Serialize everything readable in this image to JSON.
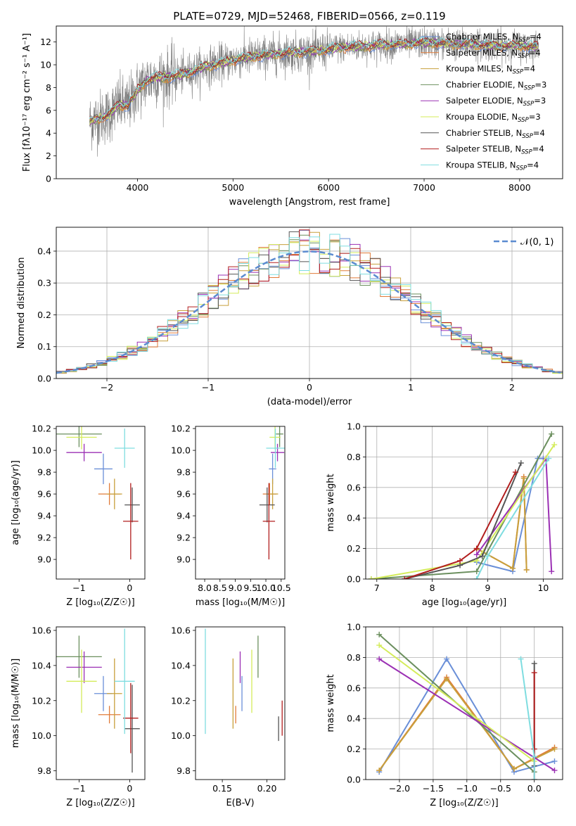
{
  "title": "PLATE=0729, MJD=52468, FIBERID=0566, z=0.119",
  "colors": {
    "Chabrier MILES": "#6a8fd8",
    "Salpeter MILES": "#e07b39",
    "Kroupa MILES": "#c8a03c",
    "Chabrier ELODIE": "#6b8f5e",
    "Salpeter ELODIE": "#9b30b4",
    "Kroupa ELODIE": "#d4ec5a",
    "Chabrier STELIB": "#555555",
    "Salpeter STELIB": "#b21e1e",
    "Kroupa STELIB": "#7fdde0",
    "spectrum": "#808080",
    "gauss": "#5b8bd0"
  },
  "chart_data": [
    {
      "type": "line",
      "panel": "spectrum",
      "xlabel": "wavelength [Angstrom, rest frame]",
      "ylabel": "Flux [fλ10⁻¹⁷ erg cm⁻² s⁻¹ A⁻¹]",
      "xlim": [
        3150,
        8450
      ],
      "ylim": [
        0,
        13.4
      ],
      "xticks": [
        4000,
        5000,
        6000,
        7000,
        8000
      ],
      "yticks": [
        0,
        2,
        4,
        6,
        8,
        10,
        12
      ],
      "legend_position": "upper-right",
      "legend": [
        "Chabrier MILES, N_SSP=4",
        "Salpeter MILES, N_SSP=4",
        "Kroupa MILES, N_SSP=4",
        "Chabrier ELODIE, N_SSP=3",
        "Salpeter ELODIE, N_SSP=3",
        "Kroupa ELODIE, N_SSP=3",
        "Chabrier STELIB, N_SSP=4",
        "Salpeter STELIB, N_SSP=4",
        "Kroupa STELIB, N_SSP=4"
      ],
      "model_continuum": {
        "x": [
          3500,
          3600,
          3700,
          3800,
          3900,
          4000,
          4100,
          4200,
          4300,
          4500,
          4700,
          4900,
          5100,
          5300,
          5500,
          5700,
          5900,
          6100,
          6300,
          6500,
          6700,
          6900,
          7100,
          7300,
          7500,
          7700,
          7900,
          8100,
          8200
        ],
        "y": [
          5.0,
          5.3,
          5.6,
          6.5,
          6.4,
          7.8,
          8.6,
          8.9,
          8.9,
          9.2,
          9.8,
          10.2,
          10.6,
          10.8,
          11.0,
          11.1,
          11.2,
          11.5,
          11.6,
          11.7,
          11.8,
          11.9,
          11.9,
          11.8,
          11.8,
          11.7,
          11.7,
          11.6,
          11.6
        ]
      },
      "spectrum_noise_level": 1.2
    },
    {
      "type": "histogram",
      "panel": "residuals",
      "xlabel": "(data-model)/error",
      "ylabel": "Normed distribution",
      "xlim": [
        -2.5,
        2.5
      ],
      "ylim": [
        0,
        0.475
      ],
      "xticks": [
        -2,
        -1,
        0,
        1,
        2
      ],
      "yticks": [
        0.0,
        0.1,
        0.2,
        0.3,
        0.4
      ],
      "grid": true,
      "legend_position": "upper-right",
      "gauss_label": "𝒩(0, 1)",
      "bin_width": 0.1
    },
    {
      "type": "errorbar",
      "panel": "age-Z",
      "xlabel": "Z [log₁₀(Z/Z☉)]",
      "ylabel": "age  [log₁₀(age/yr)]",
      "xlim": [
        -1.45,
        0.3
      ],
      "ylim": [
        8.82,
        10.22
      ],
      "xticks": [
        -1,
        0
      ],
      "yticks": [
        9.0,
        9.2,
        9.4,
        9.6,
        9.8,
        10.0,
        10.2
      ],
      "points": [
        {
          "model": "Chabrier MILES",
          "x": -0.52,
          "xerr": 0.18,
          "y": 9.83,
          "yerr": 0.14
        },
        {
          "model": "Salpeter MILES",
          "x": -0.4,
          "xerr": 0.22,
          "y": 9.6,
          "yerr": 0.1
        },
        {
          "model": "Kroupa MILES",
          "x": -0.3,
          "xerr": 0.15,
          "y": 9.6,
          "yerr": 0.14
        },
        {
          "model": "Chabrier ELODIE",
          "x": -1.0,
          "xerr": 0.45,
          "y": 10.15,
          "yerr": 0.12
        },
        {
          "model": "Salpeter ELODIE",
          "x": -0.9,
          "xerr": 0.35,
          "y": 9.98,
          "yerr": 0.08
        },
        {
          "model": "Kroupa ELODIE",
          "x": -0.95,
          "xerr": 0.3,
          "y": 10.12,
          "yerr": 0.11
        },
        {
          "model": "Chabrier STELIB",
          "x": 0.05,
          "xerr": 0.15,
          "y": 9.5,
          "yerr": 0.16
        },
        {
          "model": "Salpeter STELIB",
          "x": 0.02,
          "xerr": 0.15,
          "y": 9.35,
          "yerr": 0.35
        },
        {
          "model": "Kroupa STELIB",
          "x": -0.1,
          "xerr": 0.2,
          "y": 10.02,
          "yerr": 0.18
        }
      ]
    },
    {
      "type": "errorbar",
      "panel": "age-mass",
      "xlabel": "mass [log₁₀(M/M☉)]",
      "ylabel": "",
      "xlim": [
        7.7,
        10.62
      ],
      "ylim": [
        8.82,
        10.22
      ],
      "xticks": [
        8.0,
        8.5,
        9.0,
        9.5,
        10.0,
        10.5
      ],
      "yticks": [
        9.0,
        9.2,
        9.4,
        9.6,
        9.8,
        10.0,
        10.2
      ],
      "points": [
        {
          "model": "Chabrier MILES",
          "x": 10.22,
          "xerr": 0.12,
          "y": 9.83,
          "yerr": 0.14
        },
        {
          "model": "Salpeter MILES",
          "x": 10.12,
          "xerr": 0.22,
          "y": 9.6,
          "yerr": 0.1
        },
        {
          "model": "Kroupa MILES",
          "x": 10.22,
          "xerr": 0.18,
          "y": 9.6,
          "yerr": 0.14
        },
        {
          "model": "Chabrier ELODIE",
          "x": 10.45,
          "xerr": 0.12,
          "y": 10.15,
          "yerr": 0.12
        },
        {
          "model": "Salpeter ELODIE",
          "x": 10.38,
          "xerr": 0.22,
          "y": 9.98,
          "yerr": 0.08
        },
        {
          "model": "Kroupa ELODIE",
          "x": 10.3,
          "xerr": 0.18,
          "y": 10.12,
          "yerr": 0.11
        },
        {
          "model": "Chabrier STELIB",
          "x": 10.04,
          "xerr": 0.25,
          "y": 9.5,
          "yerr": 0.16
        },
        {
          "model": "Salpeter STELIB",
          "x": 10.1,
          "xerr": 0.2,
          "y": 9.35,
          "yerr": 0.35
        },
        {
          "model": "Kroupa STELIB",
          "x": 10.31,
          "xerr": 0.3,
          "y": 10.02,
          "yerr": 0.18
        }
      ]
    },
    {
      "type": "line",
      "panel": "weight-age",
      "xlabel": "age  [log₁₀(age/yr)]",
      "ylabel": "mass weight",
      "xlim": [
        6.8,
        10.35
      ],
      "ylim": [
        0,
        1
      ],
      "xticks": [
        7,
        8,
        9,
        10
      ],
      "yticks": [
        0.0,
        0.2,
        0.4,
        0.6,
        0.8,
        1.0
      ],
      "grid": true,
      "series": [
        {
          "model": "Chabrier MILES",
          "x": [
            8.8,
            9.45,
            9.9,
            10.0
          ],
          "y": [
            0.11,
            0.05,
            0.79,
            0.79
          ]
        },
        {
          "model": "Salpeter MILES",
          "x": [
            8.8,
            9.45,
            9.65,
            9.7
          ],
          "y": [
            0.2,
            0.07,
            0.67,
            0.06
          ]
        },
        {
          "model": "Kroupa MILES",
          "x": [
            8.8,
            9.45,
            9.65,
            9.7
          ],
          "y": [
            0.2,
            0.07,
            0.66,
            0.06
          ]
        },
        {
          "model": "Chabrier ELODIE",
          "x": [
            6.9,
            8.8,
            10.15
          ],
          "y": [
            0.0,
            0.05,
            0.95
          ]
        },
        {
          "model": "Salpeter ELODIE",
          "x": [
            8.8,
            10.05,
            10.15
          ],
          "y": [
            0.16,
            0.79,
            0.05
          ]
        },
        {
          "model": "Kroupa ELODIE",
          "x": [
            6.9,
            8.8,
            10.2
          ],
          "y": [
            0.0,
            0.12,
            0.88
          ]
        },
        {
          "model": "Chabrier STELIB",
          "x": [
            7.5,
            8.5,
            8.9,
            9.6
          ],
          "y": [
            0.0,
            0.09,
            0.15,
            0.76
          ]
        },
        {
          "model": "Salpeter STELIB",
          "x": [
            7.5,
            8.5,
            8.8,
            9.5
          ],
          "y": [
            0.0,
            0.12,
            0.2,
            0.7
          ]
        },
        {
          "model": "Kroupa STELIB",
          "x": [
            8.8,
            9.0,
            10.1
          ],
          "y": [
            0.0,
            0.15,
            0.79
          ]
        }
      ]
    },
    {
      "type": "errorbar",
      "panel": "mass-Z",
      "xlabel": "Z [log₁₀(Z/Z☉)]",
      "ylabel": "mass [log₁₀(M/M☉)]",
      "xlim": [
        -1.45,
        0.3
      ],
      "ylim": [
        9.75,
        10.62
      ],
      "xticks": [
        -1,
        0
      ],
      "yticks": [
        9.8,
        10.0,
        10.2,
        10.4,
        10.6
      ],
      "points": [
        {
          "model": "Chabrier MILES",
          "x": -0.52,
          "xerr": 0.18,
          "y": 10.24,
          "yerr": 0.1
        },
        {
          "model": "Salpeter MILES",
          "x": -0.4,
          "xerr": 0.22,
          "y": 10.12,
          "yerr": 0.05
        },
        {
          "model": "Kroupa MILES",
          "x": -0.3,
          "xerr": 0.15,
          "y": 10.24,
          "yerr": 0.2
        },
        {
          "model": "Chabrier ELODIE",
          "x": -1.0,
          "xerr": 0.45,
          "y": 10.45,
          "yerr": 0.12
        },
        {
          "model": "Salpeter ELODIE",
          "x": -0.9,
          "xerr": 0.35,
          "y": 10.39,
          "yerr": 0.09
        },
        {
          "model": "Kroupa ELODIE",
          "x": -0.95,
          "xerr": 0.3,
          "y": 10.31,
          "yerr": 0.18
        },
        {
          "model": "Chabrier STELIB",
          "x": 0.05,
          "xerr": 0.15,
          "y": 10.04,
          "yerr": 0.25
        },
        {
          "model": "Salpeter STELIB",
          "x": 0.02,
          "xerr": 0.15,
          "y": 10.1,
          "yerr": 0.2
        },
        {
          "model": "Kroupa STELIB",
          "x": -0.1,
          "xerr": 0.2,
          "y": 10.31,
          "yerr": 0.3
        }
      ]
    },
    {
      "type": "errorbar",
      "panel": "mass-EBV",
      "xlabel": "E(B-V)",
      "ylabel": "",
      "xlim": [
        0.12,
        0.22
      ],
      "ylim": [
        9.75,
        10.62
      ],
      "xticks": [
        0.15,
        0.2
      ],
      "yticks": [
        9.8,
        10.0,
        10.2,
        10.4,
        10.6
      ],
      "points": [
        {
          "model": "Chabrier MILES",
          "x": 0.172,
          "y": 10.24,
          "yerr": 0.1
        },
        {
          "model": "Salpeter MILES",
          "x": 0.165,
          "y": 10.12,
          "yerr": 0.05
        },
        {
          "model": "Kroupa MILES",
          "x": 0.162,
          "y": 10.24,
          "yerr": 0.2
        },
        {
          "model": "Chabrier ELODIE",
          "x": 0.19,
          "y": 10.45,
          "yerr": 0.12
        },
        {
          "model": "Salpeter ELODIE",
          "x": 0.17,
          "y": 10.39,
          "yerr": 0.09
        },
        {
          "model": "Kroupa ELODIE",
          "x": 0.183,
          "y": 10.31,
          "yerr": 0.18
        },
        {
          "model": "Chabrier STELIB",
          "x": 0.213,
          "y": 10.04,
          "yerr": 0.07
        },
        {
          "model": "Salpeter STELIB",
          "x": 0.217,
          "y": 10.1,
          "yerr": 0.1
        },
        {
          "model": "Kroupa STELIB",
          "x": 0.131,
          "y": 10.31,
          "yerr": 0.3
        }
      ]
    },
    {
      "type": "line",
      "panel": "weight-Z",
      "xlabel": "Z [log₁₀(Z/Z☉)]",
      "ylabel": "mass weight",
      "xlim": [
        -2.5,
        0.42
      ],
      "ylim": [
        0,
        1
      ],
      "xticks": [
        -2.0,
        -1.5,
        -1.0,
        -0.5,
        0.0
      ],
      "yticks": [
        0.0,
        0.2,
        0.4,
        0.6,
        0.8,
        1.0
      ],
      "grid": true,
      "series": [
        {
          "model": "Chabrier MILES",
          "x": [
            -2.3,
            -1.3,
            -0.3,
            0.3
          ],
          "y": [
            0.05,
            0.79,
            0.05,
            0.12
          ]
        },
        {
          "model": "Salpeter MILES",
          "x": [
            -2.3,
            -1.3,
            -0.3,
            0.3
          ],
          "y": [
            0.06,
            0.67,
            0.07,
            0.21
          ]
        },
        {
          "model": "Kroupa MILES",
          "x": [
            -2.3,
            -1.3,
            -0.3,
            0.3
          ],
          "y": [
            0.06,
            0.66,
            0.07,
            0.2
          ]
        },
        {
          "model": "Chabrier ELODIE",
          "x": [
            -2.3,
            0.0
          ],
          "y": [
            0.95,
            0.05
          ]
        },
        {
          "model": "Salpeter ELODIE",
          "x": [
            -2.3,
            0.3
          ],
          "y": [
            0.79,
            0.06
          ]
        },
        {
          "model": "Kroupa ELODIE",
          "x": [
            -2.3,
            0.0
          ],
          "y": [
            0.88,
            0.12
          ]
        },
        {
          "model": "Chabrier STELIB",
          "x": [
            0.0,
            0.0,
            0.0
          ],
          "y": [
            0.76,
            0.15,
            0.09
          ]
        },
        {
          "model": "Salpeter STELIB",
          "x": [
            0.0,
            0.0,
            0.0
          ],
          "y": [
            0.7,
            0.2,
            0.0
          ]
        },
        {
          "model": "Kroupa STELIB",
          "x": [
            -0.2,
            0.0,
            0.0
          ],
          "y": [
            0.79,
            0.15,
            0.0
          ]
        }
      ]
    }
  ]
}
